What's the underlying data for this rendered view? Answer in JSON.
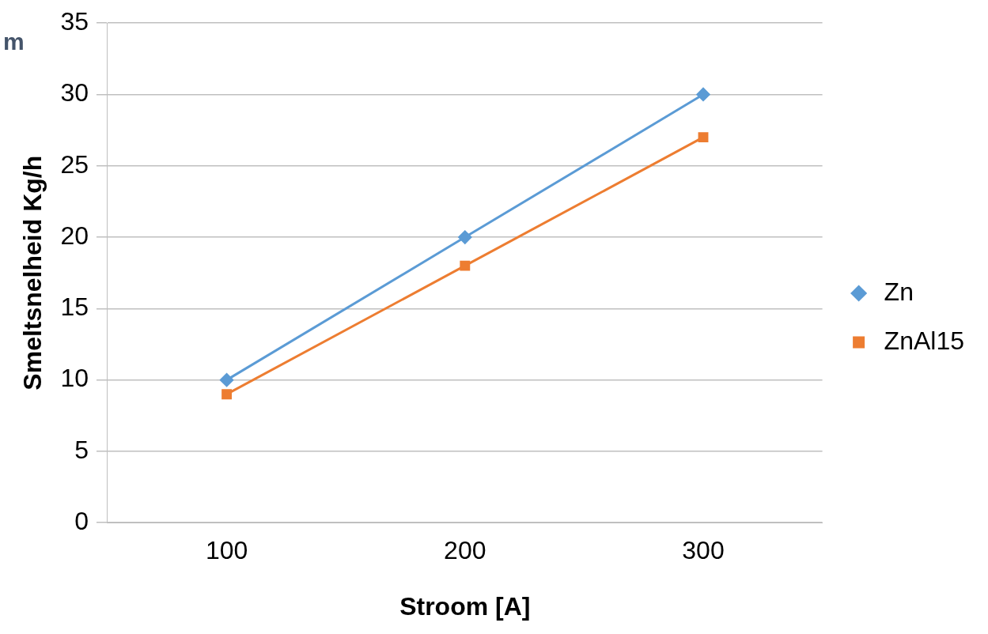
{
  "chart_data": {
    "type": "line",
    "xlabel": "Stroom [A]",
    "ylabel": "Smeltsnelheid Kg/h",
    "annotations": [
      "m"
    ],
    "categories": [
      "100",
      "200",
      "300"
    ],
    "series": [
      {
        "name": "Zn",
        "color": "#5b9bd5",
        "values": [
          10,
          20,
          30
        ],
        "marker": "diamond"
      },
      {
        "name": "ZnAl15",
        "color": "#ed7d31",
        "values": [
          9,
          18,
          27
        ],
        "marker": "square"
      }
    ],
    "ylim": [
      0,
      35
    ],
    "yticks": [
      0,
      5,
      10,
      15,
      20,
      25,
      30,
      35
    ],
    "grid": "y",
    "legend": "right",
    "line_style": "solid"
  }
}
